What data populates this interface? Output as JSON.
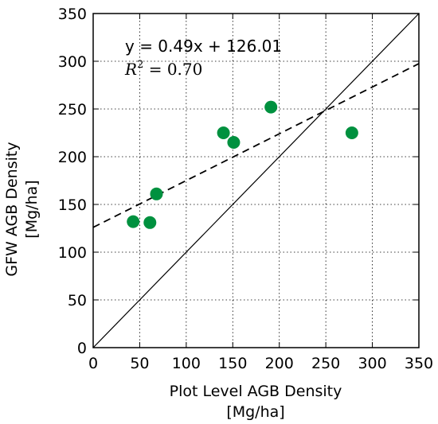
{
  "chart_data": {
    "type": "scatter",
    "title": "",
    "xlabel_line1": "Plot Level AGB Density",
    "xlabel_line2": "[Mg/ha]",
    "ylabel_line1": "GFW AGB Density",
    "ylabel_line2": "[Mg/ha]",
    "xlim": [
      0,
      350
    ],
    "ylim": [
      0,
      350
    ],
    "xticks": [
      0,
      50,
      100,
      150,
      200,
      250,
      300,
      350
    ],
    "yticks": [
      0,
      50,
      100,
      150,
      200,
      250,
      300,
      350
    ],
    "grid": true,
    "grid_style": "dotted",
    "points": [
      {
        "x": 43,
        "y": 132
      },
      {
        "x": 61,
        "y": 131
      },
      {
        "x": 68,
        "y": 161
      },
      {
        "x": 140,
        "y": 225
      },
      {
        "x": 151,
        "y": 215
      },
      {
        "x": 191,
        "y": 252
      },
      {
        "x": 278,
        "y": 225
      }
    ],
    "regression": {
      "slope": 0.49,
      "intercept": 126.01,
      "style": "dashed"
    },
    "identity_line": {
      "slope": 1,
      "intercept": 0,
      "style": "solid"
    },
    "annotation_equation": "y = 0.49x + 126.01",
    "annotation_r2_symbol": "R",
    "annotation_r2_exponent": "2",
    "annotation_r2_value": " = 0.70",
    "point_color": "#00913f"
  }
}
